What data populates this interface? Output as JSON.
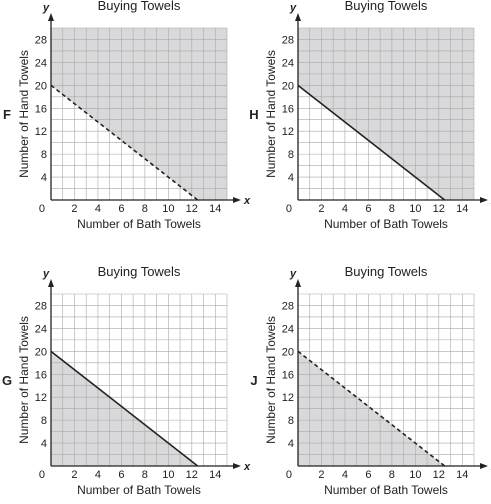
{
  "chart_data": [
    {
      "letter": "F",
      "type": "area",
      "title": "Buying Towels",
      "xlabel": "Number of Bath Towels",
      "ylabel": "Number of Hand Towels",
      "x_var": "x",
      "y_var": "y",
      "origin_label": "0",
      "xlim": [
        0,
        15
      ],
      "ylim": [
        0,
        30
      ],
      "xticks": [
        "2",
        "4",
        "6",
        "8",
        "10",
        "12",
        "14"
      ],
      "yticks": [
        "4",
        "8",
        "12",
        "16",
        "20",
        "24",
        "28"
      ],
      "grid": true,
      "boundary": {
        "x": [
          0,
          12.5
        ],
        "y": [
          20,
          0
        ],
        "style": "dashed"
      },
      "shaded": "above"
    },
    {
      "letter": "H",
      "type": "area",
      "title": "Buying Towels",
      "xlabel": "Number of Bath Towels",
      "ylabel": "Number of Hand Towels",
      "x_var": "x",
      "y_var": "y",
      "origin_label": "0",
      "xlim": [
        0,
        15
      ],
      "ylim": [
        0,
        30
      ],
      "xticks": [
        "2",
        "4",
        "6",
        "8",
        "10",
        "12",
        "14"
      ],
      "yticks": [
        "4",
        "8",
        "12",
        "16",
        "20",
        "24",
        "28"
      ],
      "grid": true,
      "boundary": {
        "x": [
          0,
          12.5
        ],
        "y": [
          20,
          0
        ],
        "style": "solid"
      },
      "shaded": "above"
    },
    {
      "letter": "G",
      "type": "area",
      "title": "Buying Towels",
      "xlabel": "Number of Bath Towels",
      "ylabel": "Number of Hand Towels",
      "x_var": "x",
      "y_var": "y",
      "origin_label": "0",
      "xlim": [
        0,
        15
      ],
      "ylim": [
        0,
        30
      ],
      "xticks": [
        "2",
        "4",
        "6",
        "8",
        "10",
        "12",
        "14"
      ],
      "yticks": [
        "4",
        "8",
        "12",
        "16",
        "20",
        "24",
        "28"
      ],
      "grid": true,
      "boundary": {
        "x": [
          0,
          12.5
        ],
        "y": [
          20,
          0
        ],
        "style": "solid"
      },
      "shaded": "below"
    },
    {
      "letter": "J",
      "type": "area",
      "title": "Buying Towels",
      "xlabel": "Number of Bath Towels",
      "ylabel": "Number of Hand Towels",
      "x_var": "x",
      "y_var": "y",
      "origin_label": "0",
      "xlim": [
        0,
        15
      ],
      "ylim": [
        0,
        30
      ],
      "xticks": [
        "2",
        "4",
        "6",
        "8",
        "10",
        "12",
        "14"
      ],
      "yticks": [
        "4",
        "8",
        "12",
        "16",
        "20",
        "24",
        "28"
      ],
      "grid": true,
      "boundary": {
        "x": [
          0,
          12.5
        ],
        "y": [
          20,
          0
        ],
        "style": "dashed"
      },
      "shaded": "below"
    }
  ],
  "colors": {
    "shade": "#d9d9db",
    "grid": "#a9a9a9",
    "ink": "#222222"
  }
}
